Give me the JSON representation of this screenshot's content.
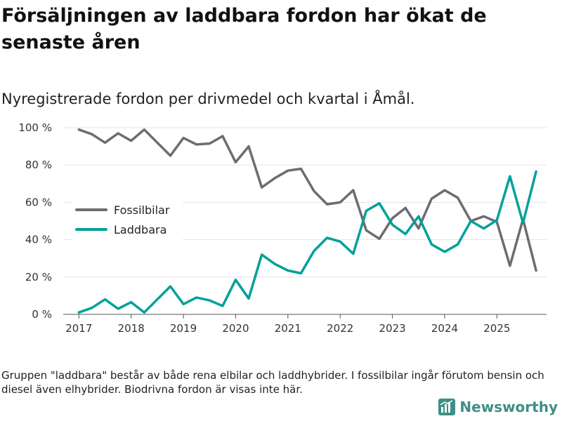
{
  "title": "Försäljningen av laddbara fordon har ökat de senaste åren",
  "subtitle": "Nyregistrerade fordon per drivmedel och kvartal i Åmål.",
  "footnote": "Gruppen \"laddbara\" består av både rena elbilar och laddhybrider. I fossilbilar ingår förutom bensin och diesel även elhybrider. Biodrivna fordon är visas inte här.",
  "brand": {
    "name": "Newsworthy",
    "icon": "newsworthy-logo-icon",
    "color": "#3f8f86"
  },
  "chart_data": {
    "type": "line",
    "title": "Försäljningen av laddbara fordon har ökat de senaste åren",
    "xlabel": "",
    "ylabel": "",
    "ylim": [
      0,
      100
    ],
    "yticks": [
      0,
      20,
      40,
      60,
      80,
      100
    ],
    "ytick_labels": [
      "0 %",
      "20 %",
      "40 %",
      "60 %",
      "80 %",
      "100 %"
    ],
    "xlim": [
      2016.7,
      2025.95
    ],
    "xticks": [
      2017,
      2018,
      2019,
      2020,
      2021,
      2022,
      2023,
      2024,
      2025
    ],
    "xtick_labels": [
      "2017",
      "2018",
      "2019",
      "2020",
      "2021",
      "2022",
      "2023",
      "2024",
      "2025"
    ],
    "grid": true,
    "legend_position": "center-left",
    "x": [
      2017.0,
      2017.25,
      2017.5,
      2017.75,
      2018.0,
      2018.25,
      2018.5,
      2018.75,
      2019.0,
      2019.25,
      2019.5,
      2019.75,
      2020.0,
      2020.25,
      2020.5,
      2020.75,
      2021.0,
      2021.25,
      2021.5,
      2021.75,
      2022.0,
      2022.25,
      2022.5,
      2022.75,
      2023.0,
      2023.25,
      2023.5,
      2023.75,
      2024.0,
      2024.25,
      2024.5,
      2024.75,
      2025.0,
      2025.25,
      2025.5,
      2025.75
    ],
    "series": [
      {
        "name": "Fossilbilar",
        "color": "#6d6c72",
        "values": [
          99,
          96.5,
          92,
          97,
          93,
          99,
          92,
          85,
          94.5,
          91,
          91.5,
          95.5,
          81.5,
          90,
          68,
          73,
          77,
          78,
          66,
          59,
          60,
          66.5,
          45,
          40.5,
          51.5,
          57,
          46,
          62,
          66.5,
          62.5,
          50,
          52.5,
          49.5,
          26,
          51,
          23.5
        ]
      },
      {
        "name": "Laddbara",
        "color": "#00a199",
        "values": [
          1,
          3.5,
          8,
          3,
          6.5,
          1,
          8,
          15,
          5.5,
          9,
          7.5,
          4.5,
          18.5,
          8.5,
          32,
          27,
          23.5,
          22,
          34,
          41,
          39,
          32.5,
          55.5,
          59.5,
          48,
          43,
          52.5,
          37.5,
          33.5,
          37.5,
          50,
          46,
          50.5,
          74,
          49,
          76.5
        ]
      }
    ]
  }
}
